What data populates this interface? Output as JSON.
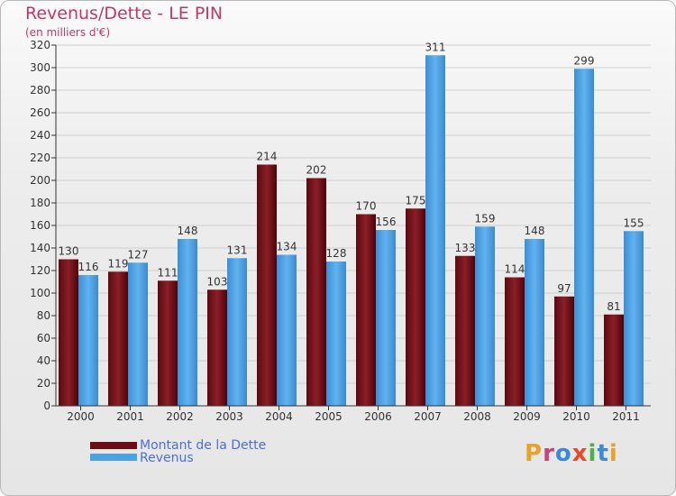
{
  "header": {
    "title": "Revenus/Dette - LE PIN",
    "subtitle": "(en milliers d'€)"
  },
  "colors": {
    "dette": "#6b0d14",
    "revenus": "#4aa1e3",
    "axis": "#333333",
    "grid": "#cfcfcf",
    "title": "#c0386a",
    "legend_text": "#4a6ee0"
  },
  "legend": {
    "dette_label": "Montant de la Dette",
    "revenus_label": "Revenus"
  },
  "logo": {
    "letters": [
      "P",
      "r",
      "o",
      "x",
      "i",
      "t",
      "i"
    ],
    "colors": [
      "#e8a12a",
      "#c9427a",
      "#3a8ad8",
      "#e84a2a",
      "#4db04a",
      "#3a8ad8",
      "#e8a12a"
    ]
  },
  "chart_data": {
    "type": "bar",
    "title": "Revenus/Dette - LE PIN",
    "ylabel": "(en milliers d'€)",
    "xlabel": "",
    "categories": [
      "2000",
      "2001",
      "2002",
      "2003",
      "2004",
      "2005",
      "2006",
      "2007",
      "2008",
      "2009",
      "2010",
      "2011"
    ],
    "series": [
      {
        "name": "Montant de la Dette",
        "values": [
          130,
          119,
          111,
          103,
          214,
          202,
          170,
          175,
          133,
          114,
          97,
          81
        ]
      },
      {
        "name": "Revenus",
        "values": [
          116,
          127,
          148,
          131,
          134,
          128,
          156,
          311,
          159,
          148,
          299,
          155
        ]
      }
    ],
    "ylim": [
      0,
      320
    ],
    "ytick_step": 20,
    "grid": true,
    "legend_position": "bottom-left"
  }
}
